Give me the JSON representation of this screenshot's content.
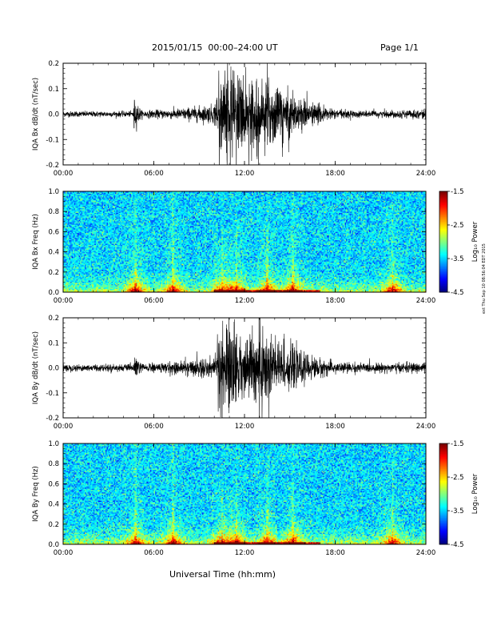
{
  "header": {
    "title": "2015/01/15  00:00–24:00 UT",
    "page": "Page 1/1"
  },
  "footer": {
    "xlabel": "Universal Time (hh:mm)",
    "stamp": "ext Thu Sep 10 08:56:04 EDT 2015"
  },
  "colors": {
    "background": "#ffffff",
    "trace": "#000000",
    "spectrogram_low": "#0000aa",
    "spectrogram_high": "#ff0000"
  },
  "chart_data": [
    {
      "type": "line",
      "ylabel": "IQA Bx dB/dt (nT/sec)",
      "x_ticks": [
        "00:00",
        "06:00",
        "12:00",
        "18:00",
        "24:00"
      ],
      "y_ticks": [
        "0.2",
        "0.1",
        "0.0",
        "-0.1",
        "-0.2"
      ],
      "xlim_hours": [
        0,
        24
      ],
      "ylim": [
        -0.2,
        0.2
      ],
      "envelope": {
        "hours": [
          0,
          4.6,
          4.8,
          5.2,
          7,
          8,
          10,
          10.5,
          11,
          11.5,
          12,
          13,
          14,
          15,
          16,
          17,
          18,
          20,
          22,
          24
        ],
        "amplitude": [
          0.012,
          0.012,
          0.06,
          0.015,
          0.02,
          0.025,
          0.04,
          0.2,
          0.2,
          0.2,
          0.15,
          0.13,
          0.14,
          0.1,
          0.06,
          0.04,
          0.02,
          0.015,
          0.015,
          0.02
        ]
      }
    },
    {
      "type": "heatmap",
      "ylabel": "IQA Bx Freq (Hz)",
      "x_ticks": [
        "00:00",
        "06:00",
        "12:00",
        "18:00",
        "24:00"
      ],
      "y_ticks": [
        "1.0",
        "0.8",
        "0.6",
        "0.4",
        "0.2",
        "0.0"
      ],
      "xlim_hours": [
        0,
        24
      ],
      "ylim": [
        0,
        1.0
      ],
      "colorbar": {
        "label": "Log₁₀ Power",
        "ticks": [
          "-1.5",
          "-2.5",
          "-3.5",
          "-4.5"
        ],
        "range": [
          -4.5,
          -1.5
        ]
      },
      "activity_hours": [
        4.8,
        7.3,
        10.5,
        11.5,
        13.5,
        15.2,
        21.8
      ],
      "peak_hours": [
        10,
        17
      ]
    },
    {
      "type": "line",
      "ylabel": "IQA By dB/dt (nT/sec)",
      "x_ticks": [
        "00:00",
        "06:00",
        "12:00",
        "18:00",
        "24:00"
      ],
      "y_ticks": [
        "0.2",
        "0.1",
        "0.0",
        "-0.1",
        "-0.2"
      ],
      "xlim_hours": [
        0,
        24
      ],
      "ylim": [
        -0.2,
        0.2
      ],
      "envelope": {
        "hours": [
          0,
          4.6,
          4.8,
          5.2,
          7,
          8,
          10,
          10.5,
          11,
          11.5,
          12,
          13,
          14,
          15,
          16,
          17,
          18,
          20,
          22,
          24
        ],
        "amplitude": [
          0.015,
          0.015,
          0.05,
          0.018,
          0.025,
          0.03,
          0.05,
          0.2,
          0.2,
          0.16,
          0.1,
          0.2,
          0.13,
          0.09,
          0.06,
          0.04,
          0.025,
          0.02,
          0.02,
          0.025
        ]
      }
    },
    {
      "type": "heatmap",
      "ylabel": "IQA By Freq (Hz)",
      "x_ticks": [
        "00:00",
        "06:00",
        "12:00",
        "18:00",
        "24:00"
      ],
      "y_ticks": [
        "1.0",
        "0.8",
        "0.6",
        "0.4",
        "0.2",
        "0.0"
      ],
      "xlim_hours": [
        0,
        24
      ],
      "ylim": [
        0,
        1.0
      ],
      "colorbar": {
        "label": "Log₁₀ Power",
        "ticks": [
          "-1.5",
          "-2.5",
          "-3.5",
          "-4.5"
        ],
        "range": [
          -4.5,
          -1.5
        ]
      },
      "activity_hours": [
        4.8,
        7.3,
        10.5,
        11.5,
        13.5,
        15.2,
        21.8
      ],
      "peak_hours": [
        10,
        17
      ]
    }
  ]
}
